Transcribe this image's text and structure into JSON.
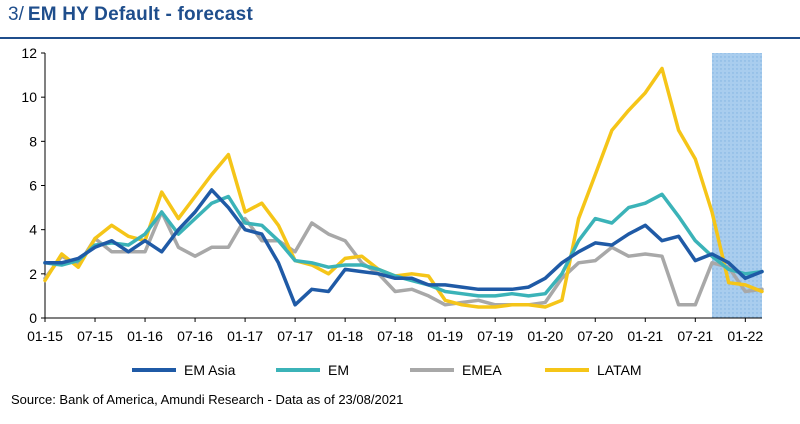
{
  "header": {
    "number": "3/",
    "title": "EM HY Default - forecast"
  },
  "source": "Source: Bank of America, Amundi Research - Data as of 23/08/2021",
  "colors": {
    "EM Asia": "#1f5aa6",
    "EM": "#3bb3b8",
    "EMEA": "#a8a8a8",
    "LATAM": "#f5c518",
    "forecast_band": "#a9cdee",
    "title": "#1f4e8c"
  },
  "chart_data": {
    "type": "line",
    "ylim": [
      0,
      12
    ],
    "yticks": [
      0,
      2,
      4,
      6,
      8,
      10,
      12
    ],
    "xtick_labels": [
      "01-15",
      "07-15",
      "01-16",
      "07-16",
      "01-17",
      "07-17",
      "01-18",
      "07-18",
      "01-19",
      "07-19",
      "01-20",
      "07-20",
      "01-21",
      "07-21",
      "01-22"
    ],
    "x_range": [
      "2015-01",
      "2022-03"
    ],
    "forecast_period": [
      "2021-09",
      "2022-03"
    ],
    "grid": false,
    "legend_position": "bottom",
    "series": [
      {
        "name": "EM Asia",
        "points": [
          [
            "2015-01",
            2.5
          ],
          [
            "2015-03",
            2.5
          ],
          [
            "2015-05",
            2.7
          ],
          [
            "2015-07",
            3.2
          ],
          [
            "2015-09",
            3.5
          ],
          [
            "2015-11",
            3.0
          ],
          [
            "2016-01",
            3.5
          ],
          [
            "2016-03",
            3.0
          ],
          [
            "2016-05",
            4.0
          ],
          [
            "2016-07",
            4.8
          ],
          [
            "2016-09",
            5.8
          ],
          [
            "2016-11",
            5.0
          ],
          [
            "2017-01",
            4.0
          ],
          [
            "2017-03",
            3.8
          ],
          [
            "2017-05",
            2.5
          ],
          [
            "2017-07",
            0.6
          ],
          [
            "2017-09",
            1.3
          ],
          [
            "2017-11",
            1.2
          ],
          [
            "2018-01",
            2.2
          ],
          [
            "2018-03",
            2.1
          ],
          [
            "2018-05",
            2.0
          ],
          [
            "2018-07",
            1.8
          ],
          [
            "2018-09",
            1.8
          ],
          [
            "2018-11",
            1.5
          ],
          [
            "2019-01",
            1.5
          ],
          [
            "2019-03",
            1.4
          ],
          [
            "2019-05",
            1.3
          ],
          [
            "2019-07",
            1.3
          ],
          [
            "2019-09",
            1.3
          ],
          [
            "2019-11",
            1.4
          ],
          [
            "2020-01",
            1.8
          ],
          [
            "2020-03",
            2.5
          ],
          [
            "2020-05",
            3.0
          ],
          [
            "2020-07",
            3.4
          ],
          [
            "2020-09",
            3.3
          ],
          [
            "2020-11",
            3.8
          ],
          [
            "2021-01",
            4.2
          ],
          [
            "2021-03",
            3.5
          ],
          [
            "2021-05",
            3.7
          ],
          [
            "2021-07",
            2.6
          ],
          [
            "2021-09",
            2.9
          ],
          [
            "2021-11",
            2.5
          ],
          [
            "2022-01",
            1.8
          ],
          [
            "2022-03",
            2.1
          ]
        ]
      },
      {
        "name": "EM",
        "points": [
          [
            "2015-01",
            2.5
          ],
          [
            "2015-03",
            2.4
          ],
          [
            "2015-05",
            2.6
          ],
          [
            "2015-07",
            3.3
          ],
          [
            "2015-09",
            3.4
          ],
          [
            "2015-11",
            3.3
          ],
          [
            "2016-01",
            3.8
          ],
          [
            "2016-03",
            4.8
          ],
          [
            "2016-05",
            3.8
          ],
          [
            "2016-07",
            4.5
          ],
          [
            "2016-09",
            5.2
          ],
          [
            "2016-11",
            5.5
          ],
          [
            "2017-01",
            4.3
          ],
          [
            "2017-03",
            4.2
          ],
          [
            "2017-05",
            3.5
          ],
          [
            "2017-07",
            2.6
          ],
          [
            "2017-09",
            2.5
          ],
          [
            "2017-11",
            2.3
          ],
          [
            "2018-01",
            2.4
          ],
          [
            "2018-03",
            2.4
          ],
          [
            "2018-05",
            2.2
          ],
          [
            "2018-07",
            1.9
          ],
          [
            "2018-09",
            1.7
          ],
          [
            "2018-11",
            1.5
          ],
          [
            "2019-01",
            1.2
          ],
          [
            "2019-03",
            1.1
          ],
          [
            "2019-05",
            1.0
          ],
          [
            "2019-07",
            1.0
          ],
          [
            "2019-09",
            1.1
          ],
          [
            "2019-11",
            1.0
          ],
          [
            "2020-01",
            1.1
          ],
          [
            "2020-03",
            2.0
          ],
          [
            "2020-05",
            3.5
          ],
          [
            "2020-07",
            4.5
          ],
          [
            "2020-09",
            4.3
          ],
          [
            "2020-11",
            5.0
          ],
          [
            "2021-01",
            5.2
          ],
          [
            "2021-03",
            5.6
          ],
          [
            "2021-05",
            4.6
          ],
          [
            "2021-07",
            3.5
          ],
          [
            "2021-09",
            2.8
          ],
          [
            "2021-11",
            2.2
          ],
          [
            "2022-01",
            2.0
          ],
          [
            "2022-03",
            2.1
          ]
        ]
      },
      {
        "name": "EMEA",
        "points": [
          [
            "2015-01",
            1.8
          ],
          [
            "2015-03",
            2.8
          ],
          [
            "2015-05",
            2.4
          ],
          [
            "2015-07",
            3.6
          ],
          [
            "2015-09",
            3.0
          ],
          [
            "2015-11",
            3.0
          ],
          [
            "2016-01",
            3.0
          ],
          [
            "2016-03",
            4.8
          ],
          [
            "2016-05",
            3.2
          ],
          [
            "2016-07",
            2.8
          ],
          [
            "2016-09",
            3.2
          ],
          [
            "2016-11",
            3.2
          ],
          [
            "2017-01",
            4.5
          ],
          [
            "2017-03",
            3.5
          ],
          [
            "2017-05",
            3.5
          ],
          [
            "2017-07",
            3.0
          ],
          [
            "2017-09",
            4.3
          ],
          [
            "2017-11",
            3.8
          ],
          [
            "2018-01",
            3.5
          ],
          [
            "2018-03",
            2.5
          ],
          [
            "2018-05",
            2.0
          ],
          [
            "2018-07",
            1.2
          ],
          [
            "2018-09",
            1.3
          ],
          [
            "2018-11",
            1.0
          ],
          [
            "2019-01",
            0.6
          ],
          [
            "2019-03",
            0.7
          ],
          [
            "2019-05",
            0.8
          ],
          [
            "2019-07",
            0.6
          ],
          [
            "2019-09",
            0.6
          ],
          [
            "2019-11",
            0.6
          ],
          [
            "2020-01",
            0.7
          ],
          [
            "2020-03",
            1.8
          ],
          [
            "2020-05",
            2.5
          ],
          [
            "2020-07",
            2.6
          ],
          [
            "2020-09",
            3.2
          ],
          [
            "2020-11",
            2.8
          ],
          [
            "2021-01",
            2.9
          ],
          [
            "2021-03",
            2.8
          ],
          [
            "2021-05",
            0.6
          ],
          [
            "2021-07",
            0.6
          ],
          [
            "2021-09",
            2.5
          ],
          [
            "2021-11",
            2.3
          ],
          [
            "2022-01",
            1.2
          ],
          [
            "2022-03",
            1.3
          ]
        ]
      },
      {
        "name": "LATAM",
        "points": [
          [
            "2015-01",
            1.7
          ],
          [
            "2015-03",
            2.9
          ],
          [
            "2015-05",
            2.3
          ],
          [
            "2015-07",
            3.6
          ],
          [
            "2015-09",
            4.2
          ],
          [
            "2015-11",
            3.7
          ],
          [
            "2016-01",
            3.5
          ],
          [
            "2016-03",
            5.7
          ],
          [
            "2016-05",
            4.5
          ],
          [
            "2016-07",
            5.5
          ],
          [
            "2016-09",
            6.5
          ],
          [
            "2016-11",
            7.4
          ],
          [
            "2017-01",
            4.8
          ],
          [
            "2017-03",
            5.2
          ],
          [
            "2017-05",
            4.2
          ],
          [
            "2017-07",
            2.6
          ],
          [
            "2017-09",
            2.4
          ],
          [
            "2017-11",
            2.0
          ],
          [
            "2018-01",
            2.7
          ],
          [
            "2018-03",
            2.8
          ],
          [
            "2018-05",
            2.2
          ],
          [
            "2018-07",
            1.9
          ],
          [
            "2018-09",
            2.0
          ],
          [
            "2018-11",
            1.9
          ],
          [
            "2019-01",
            0.8
          ],
          [
            "2019-03",
            0.6
          ],
          [
            "2019-05",
            0.5
          ],
          [
            "2019-07",
            0.5
          ],
          [
            "2019-09",
            0.6
          ],
          [
            "2019-11",
            0.6
          ],
          [
            "2020-01",
            0.5
          ],
          [
            "2020-03",
            0.8
          ],
          [
            "2020-05",
            4.5
          ],
          [
            "2020-07",
            6.5
          ],
          [
            "2020-09",
            8.5
          ],
          [
            "2020-11",
            9.4
          ],
          [
            "2021-01",
            10.2
          ],
          [
            "2021-03",
            11.3
          ],
          [
            "2021-05",
            8.5
          ],
          [
            "2021-07",
            7.2
          ],
          [
            "2021-09",
            4.8
          ],
          [
            "2021-11",
            1.6
          ],
          [
            "2022-01",
            1.5
          ],
          [
            "2022-03",
            1.2
          ]
        ]
      }
    ]
  }
}
